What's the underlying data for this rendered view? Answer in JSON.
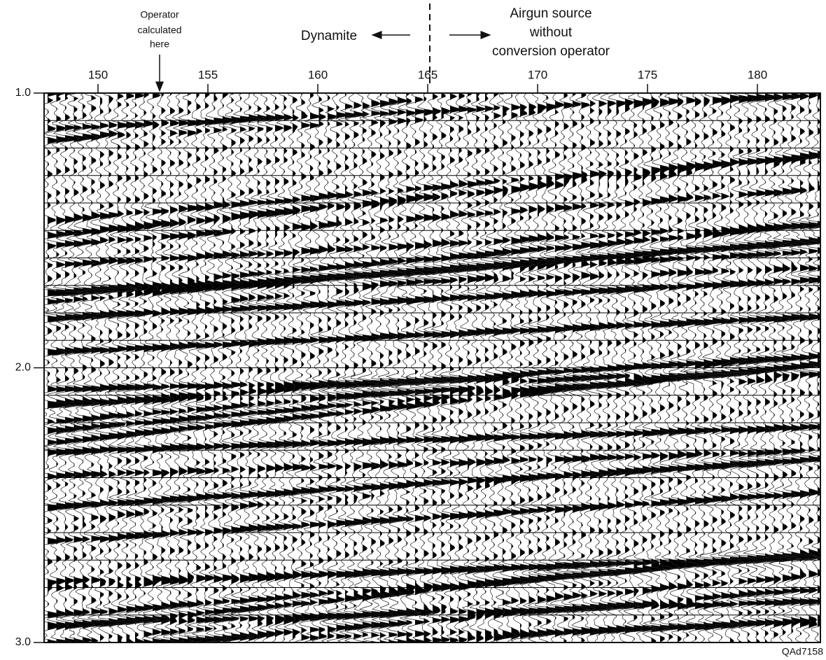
{
  "annotations": {
    "operator": [
      "Operator",
      "calculated",
      "here"
    ],
    "dynamite": "Dynamite",
    "airgun": [
      "Airgun source",
      "without",
      "conversion operator"
    ],
    "figure_id": "QAd7158"
  },
  "x_axis": {
    "ticks": [
      "150",
      "155",
      "160",
      "165",
      "170",
      "175",
      "180"
    ]
  },
  "y_axis": {
    "ticks": [
      "1.0",
      "2.0",
      "3.0"
    ]
  }
}
